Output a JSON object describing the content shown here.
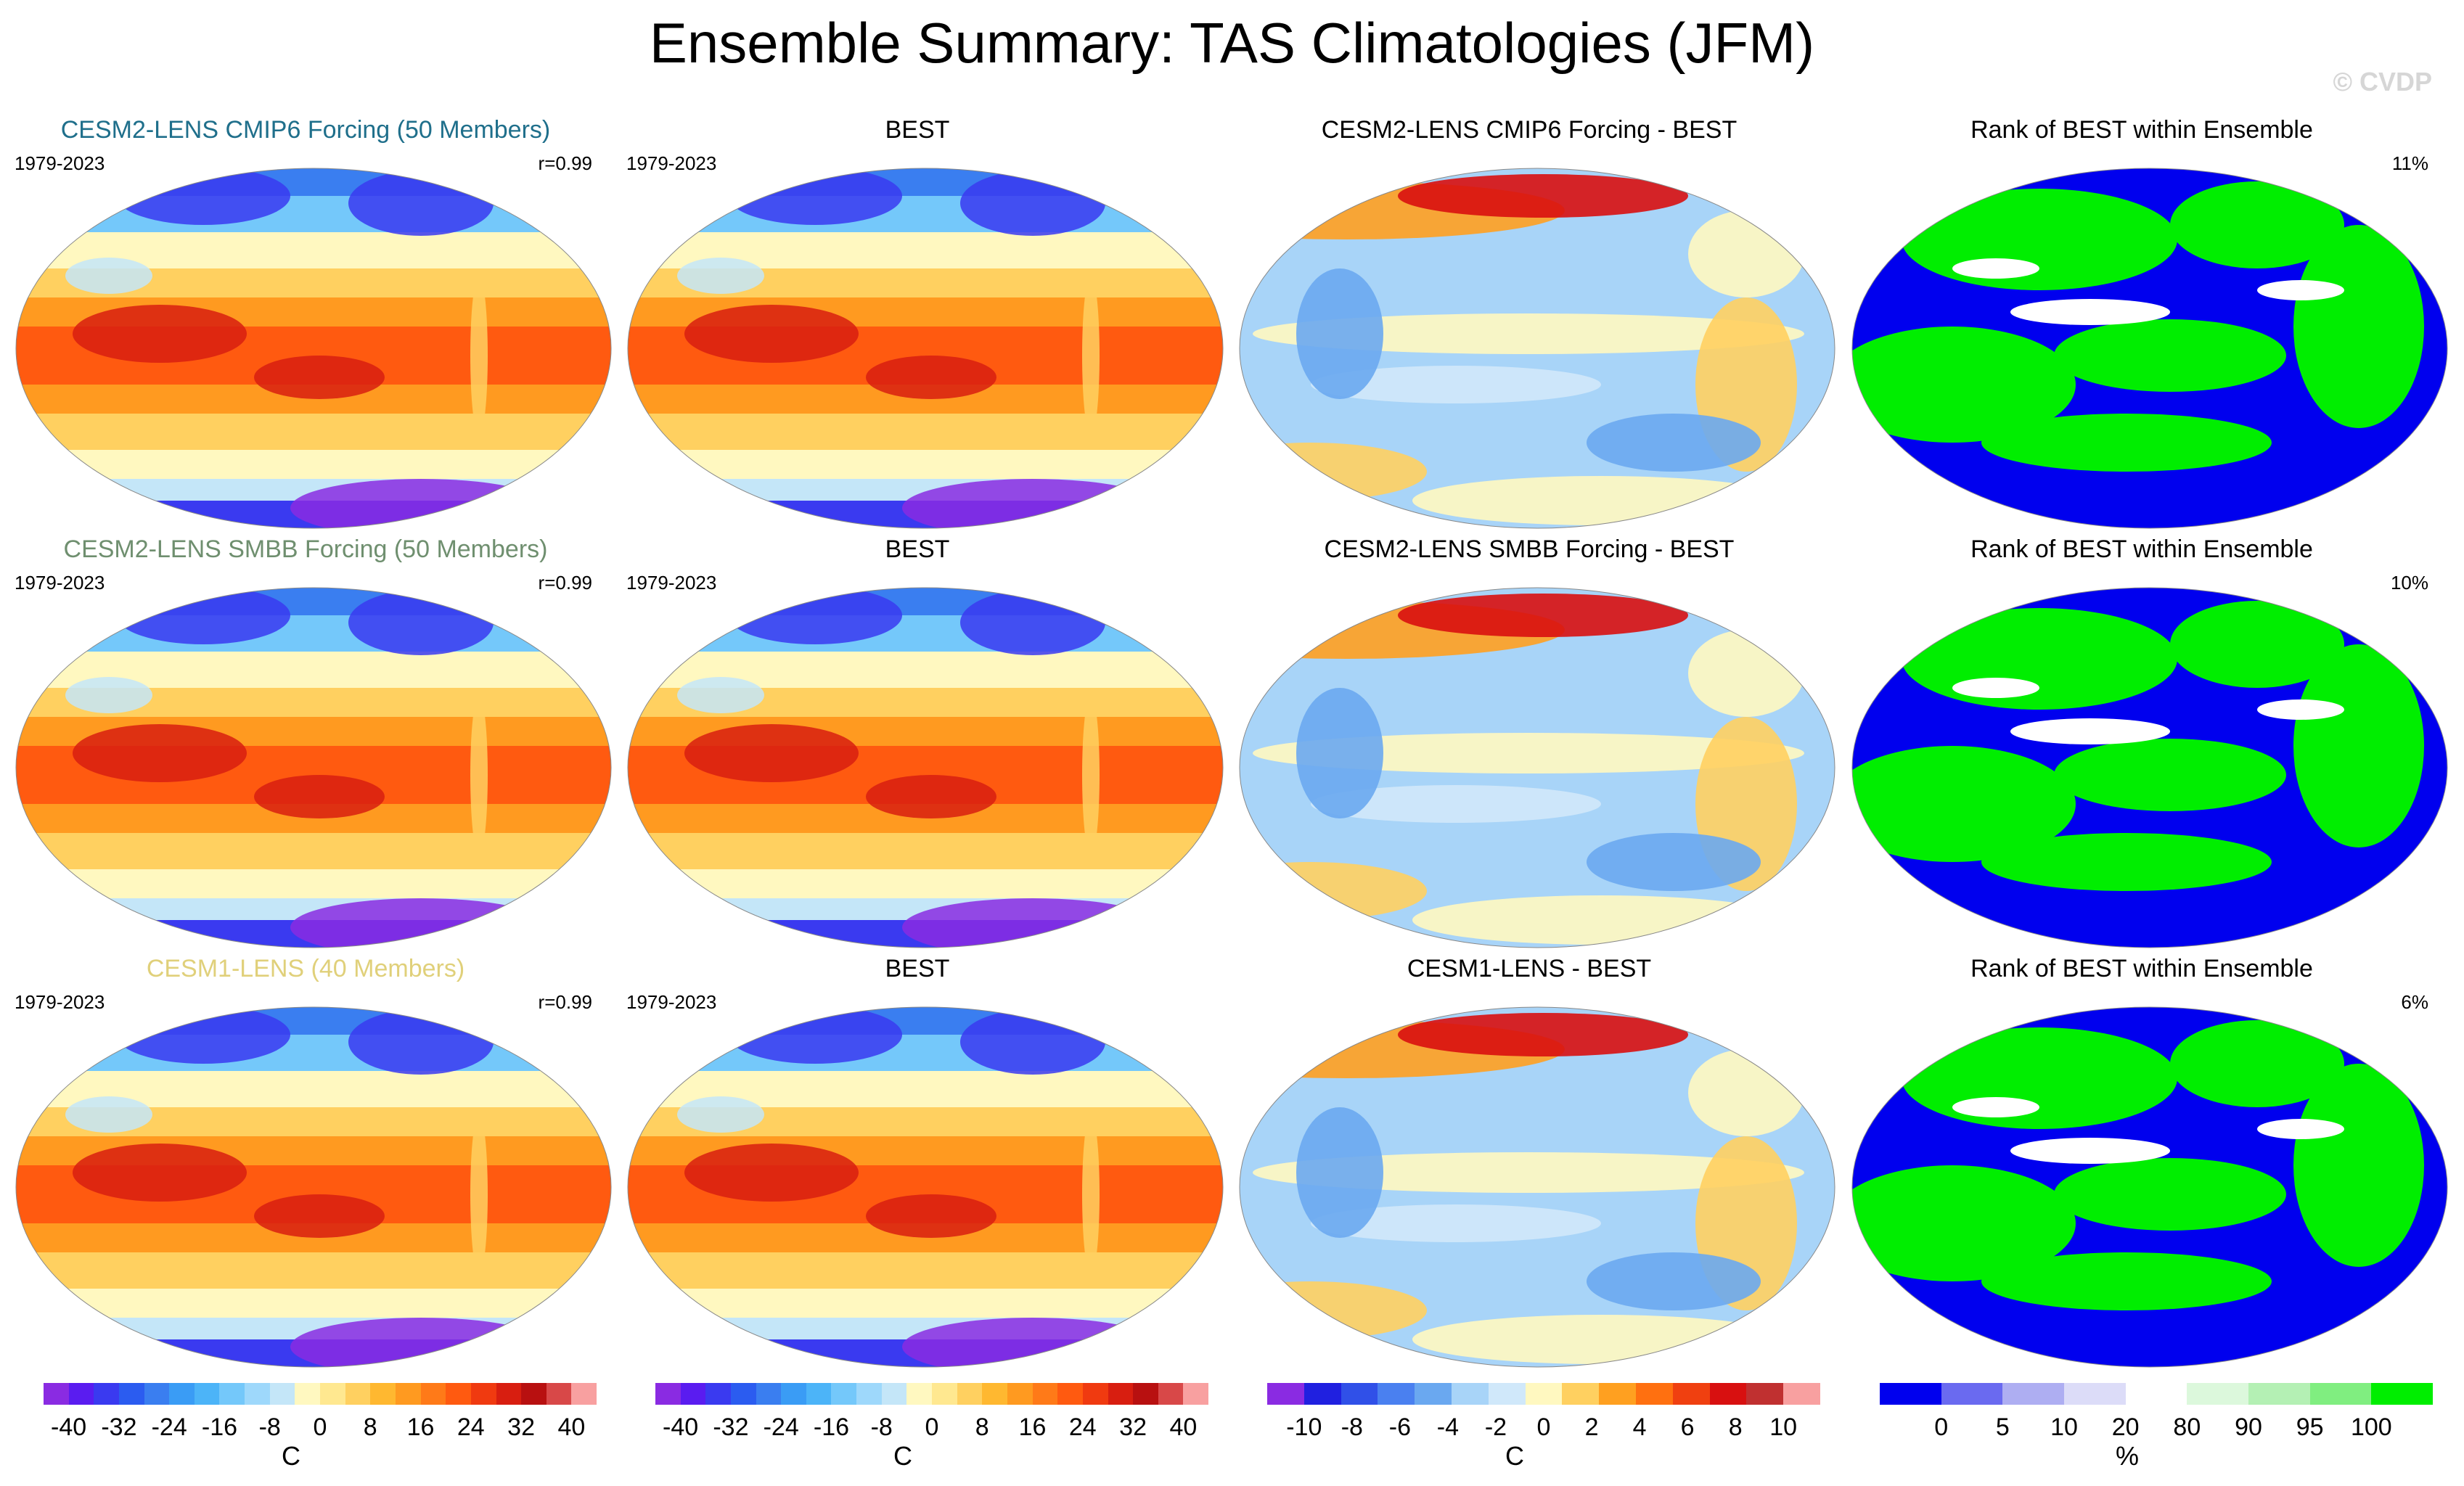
{
  "title": "Ensemble Summary: TAS Climatologies (JFM)",
  "watermark": "© CVDP",
  "rows": [
    {
      "model": {
        "title": "CESM2-LENS CMIP6 Forcing (50 Members)",
        "title_color": "#1f6f8b",
        "period": "1979-2023",
        "stat": "r=0.99"
      },
      "obs": {
        "title": "BEST",
        "period": "1979-2023"
      },
      "diff": {
        "title": "CESM2-LENS CMIP6 Forcing - BEST"
      },
      "rank": {
        "title": "Rank of BEST within Ensemble",
        "stat": "11%"
      }
    },
    {
      "model": {
        "title": "CESM2-LENS SMBB Forcing (50 Members)",
        "title_color": "#6f8f6f",
        "period": "1979-2023",
        "stat": "r=0.99"
      },
      "obs": {
        "title": "BEST",
        "period": "1979-2023"
      },
      "diff": {
        "title": "CESM2-LENS SMBB Forcing - BEST"
      },
      "rank": {
        "title": "Rank of BEST within Ensemble",
        "stat": "10%"
      }
    },
    {
      "model": {
        "title": "CESM1-LENS (40 Members)",
        "title_color": "#e0d07a",
        "period": "1979-2023",
        "stat": "r=0.99"
      },
      "obs": {
        "title": "BEST",
        "period": "1979-2023"
      },
      "diff": {
        "title": "CESM1-LENS - BEST"
      },
      "rank": {
        "title": "Rank of BEST within Ensemble",
        "stat": "6%"
      }
    }
  ],
  "colorbars": [
    {
      "ticks": [
        "-40",
        "-32",
        "-24",
        "-16",
        "-8",
        "0",
        "8",
        "16",
        "24",
        "32",
        "40"
      ],
      "units": "C",
      "colors": [
        "#8a2be2",
        "#5a1cf0",
        "#3a3af0",
        "#2b5cf0",
        "#3a7ef0",
        "#3a9cf5",
        "#4cb4f8",
        "#74c8fa",
        "#9ed8fb",
        "#c4e6f8",
        "#fff8c0",
        "#ffe890",
        "#ffd060",
        "#ffb830",
        "#ff9a20",
        "#ff7a18",
        "#ff5a10",
        "#f03a10",
        "#d81e10",
        "#b81010",
        "#d84848",
        "#f8a0a0"
      ]
    },
    {
      "ticks": [
        "-40",
        "-32",
        "-24",
        "-16",
        "-8",
        "0",
        "8",
        "16",
        "24",
        "32",
        "40"
      ],
      "units": "C",
      "colors": [
        "#8a2be2",
        "#5a1cf0",
        "#3a3af0",
        "#2b5cf0",
        "#3a7ef0",
        "#3a9cf5",
        "#4cb4f8",
        "#74c8fa",
        "#9ed8fb",
        "#c4e6f8",
        "#fff8c0",
        "#ffe890",
        "#ffd060",
        "#ffb830",
        "#ff9a20",
        "#ff7a18",
        "#ff5a10",
        "#f03a10",
        "#d81e10",
        "#b81010",
        "#d84848",
        "#f8a0a0"
      ]
    },
    {
      "ticks": [
        "-10",
        "-8",
        "-6",
        "-4",
        "-2",
        "0",
        "2",
        "4",
        "6",
        "8",
        "10"
      ],
      "units": "C",
      "colors": [
        "#8a2be2",
        "#2020e0",
        "#3050e8",
        "#4a80f0",
        "#6aa8f0",
        "#a8d4f8",
        "#d0e8fa",
        "#fff8c0",
        "#ffd060",
        "#ffa020",
        "#ff7010",
        "#f04010",
        "#d81010",
        "#c03030",
        "#f8a0a0"
      ]
    },
    {
      "ticks": [
        "0",
        "5",
        "10",
        "20",
        "80",
        "90",
        "95",
        "100"
      ],
      "units": "%",
      "colors": [
        "#0000ee",
        "#6a6af0",
        "#aeaef2",
        "#dcdcf8",
        "#ffffff",
        "#dcf8dc",
        "#b4f0b4",
        "#80ee80",
        "#00ee00"
      ]
    }
  ],
  "map_palettes": {
    "climatology": [
      "#8a2be2",
      "#3a3af0",
      "#3a7ef0",
      "#74c8fa",
      "#c4e6f8",
      "#fff8c0",
      "#ffd060",
      "#ff9a20",
      "#ff5a10",
      "#d81e10"
    ],
    "difference": [
      "#2020e0",
      "#6aa8f0",
      "#a8d4f8",
      "#d0e8fa",
      "#fff8c0",
      "#ffd060",
      "#ffa020",
      "#f04010",
      "#d81010"
    ],
    "rank": [
      "#0000ee",
      "#ffffff",
      "#00ee00"
    ]
  }
}
